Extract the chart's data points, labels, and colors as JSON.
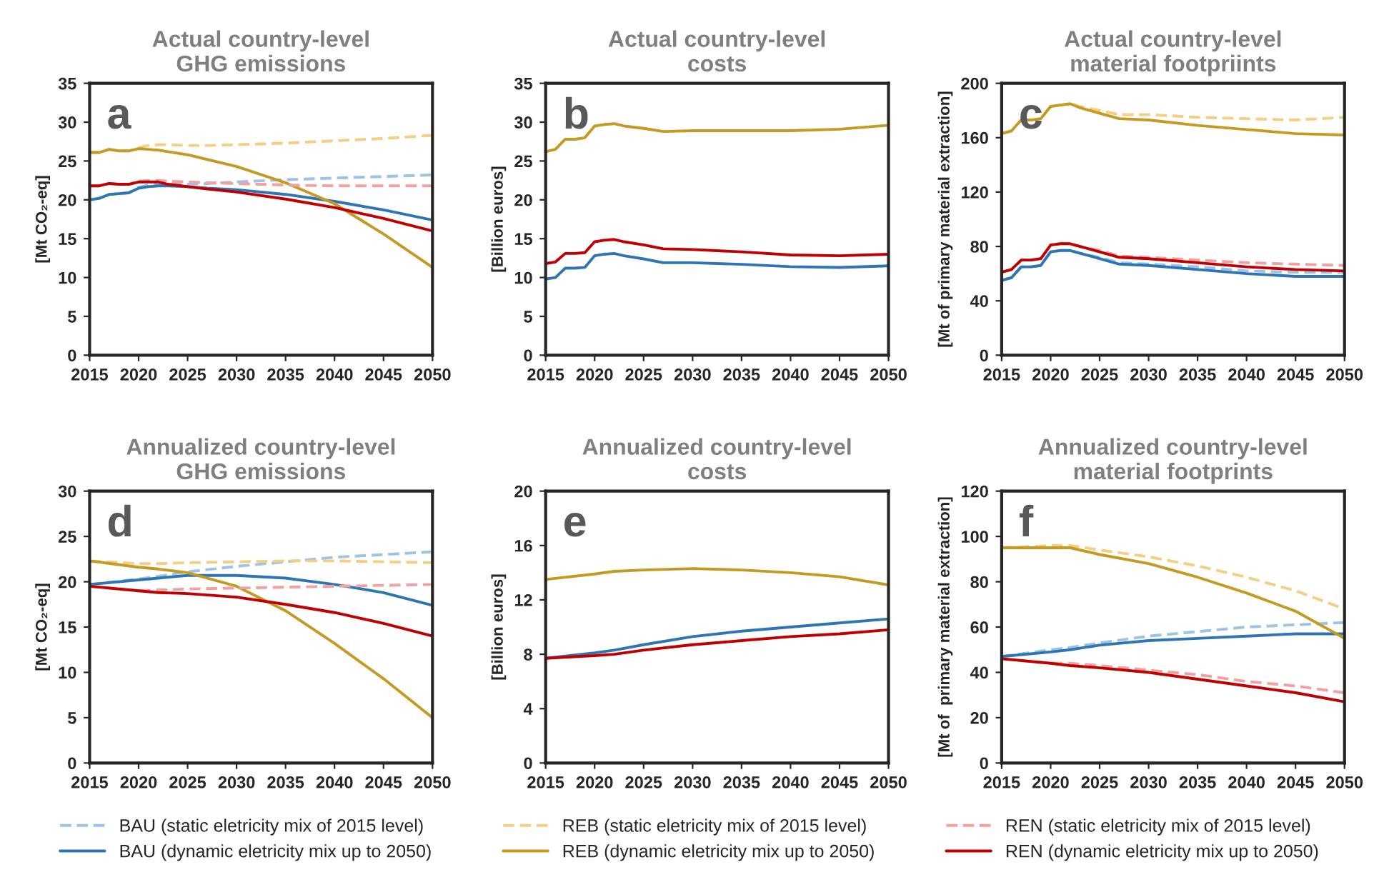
{
  "chart_data": [
    {
      "type": "line",
      "title": "Actual country-level\nGHG emissions",
      "ylabel": "[Mt CO₂-eq]",
      "annotations": [
        "a"
      ],
      "legend": "bottom",
      "xlim": [
        2015,
        2050
      ],
      "xticks": [
        2015,
        2020,
        2025,
        2030,
        2035,
        2040,
        2045,
        2050
      ],
      "ylim": [
        0,
        35
      ],
      "yticks": [
        0,
        5,
        10,
        15,
        20,
        25,
        30,
        35
      ],
      "x": [
        2015,
        2016,
        2017,
        2018,
        2019,
        2020,
        2021,
        2022,
        2023,
        2025,
        2027,
        2030,
        2035,
        2040,
        2045,
        2050
      ],
      "series": [
        {
          "name": "BAU (static eletricity mix of 2015 level)",
          "color": "#9dc3e6",
          "line_style": "dashed",
          "values": [
            20.0,
            20.2,
            20.7,
            20.8,
            20.9,
            21.6,
            21.9,
            22.0,
            22.0,
            22.0,
            22.1,
            22.3,
            22.6,
            22.8,
            23.0,
            23.2
          ]
        },
        {
          "name": "BAU (dynamic eletricity mix up to 2050)",
          "color": "#2e75b6",
          "line_style": "solid",
          "values": [
            20.0,
            20.2,
            20.7,
            20.8,
            20.9,
            21.5,
            21.7,
            21.8,
            21.8,
            21.7,
            21.5,
            21.3,
            20.7,
            19.8,
            18.7,
            17.4
          ]
        },
        {
          "name": "REB (static eletricity mix of 2015 level)",
          "color": "#f2cf85",
          "line_style": "dashed",
          "values": [
            26.1,
            26.1,
            26.5,
            26.3,
            26.3,
            26.7,
            27.0,
            27.1,
            27.1,
            27.0,
            27.0,
            27.1,
            27.3,
            27.6,
            27.9,
            28.3
          ]
        },
        {
          "name": "REB (dynamic eletricity mix up to 2050)",
          "color": "#c49a22",
          "line_style": "solid",
          "values": [
            26.1,
            26.1,
            26.5,
            26.3,
            26.3,
            26.6,
            26.5,
            26.4,
            26.2,
            25.8,
            25.2,
            24.3,
            22.2,
            19.5,
            15.6,
            11.3
          ]
        },
        {
          "name": "REN (static eletricity mix of 2015 level)",
          "color": "#f2a0a0",
          "line_style": "dashed",
          "values": [
            21.8,
            21.8,
            22.1,
            22.0,
            22.0,
            22.4,
            22.5,
            22.5,
            22.4,
            22.3,
            22.2,
            22.1,
            21.9,
            21.8,
            21.8,
            21.8
          ]
        },
        {
          "name": "REN (dynamic eletricity mix up to 2050)",
          "color": "#c00000",
          "line_style": "solid",
          "values": [
            21.8,
            21.8,
            22.1,
            22.0,
            22.0,
            22.3,
            22.3,
            22.3,
            22.0,
            21.7,
            21.4,
            21.0,
            20.1,
            19.0,
            17.6,
            16.0
          ]
        }
      ]
    },
    {
      "type": "line",
      "title": "Actual country-level\ncosts",
      "ylabel": "[Billion euros]",
      "annotations": [
        "b"
      ],
      "xlim": [
        2015,
        2050
      ],
      "xticks": [
        2015,
        2020,
        2025,
        2030,
        2035,
        2040,
        2045,
        2050
      ],
      "ylim": [
        0,
        35
      ],
      "yticks": [
        0,
        5,
        10,
        15,
        20,
        25,
        30,
        35
      ],
      "x": [
        2015,
        2016,
        2017,
        2018,
        2019,
        2020,
        2021,
        2022,
        2023,
        2025,
        2027,
        2030,
        2035,
        2040,
        2045,
        2050
      ],
      "series": [
        {
          "color": "#2e75b6",
          "line_style": "solid",
          "values": [
            9.8,
            10.0,
            11.2,
            11.2,
            11.3,
            12.8,
            13.0,
            13.1,
            12.8,
            12.4,
            11.9,
            11.9,
            11.7,
            11.4,
            11.3,
            11.5
          ]
        },
        {
          "color": "#c49a22",
          "line_style": "solid",
          "values": [
            26.2,
            26.5,
            27.8,
            27.8,
            28.0,
            29.5,
            29.7,
            29.8,
            29.5,
            29.2,
            28.8,
            28.9,
            28.9,
            28.9,
            29.1,
            29.6
          ]
        },
        {
          "color": "#c00000",
          "line_style": "solid",
          "values": [
            11.8,
            12.0,
            13.1,
            13.1,
            13.2,
            14.6,
            14.8,
            14.9,
            14.6,
            14.2,
            13.7,
            13.6,
            13.3,
            12.9,
            12.8,
            13.0
          ]
        }
      ]
    },
    {
      "type": "line",
      "title": "Actual country-level\nmaterial footpriints",
      "ylabel": "[Mt of primary material extraction]",
      "annotations": [
        "c"
      ],
      "xlim": [
        2015,
        2050
      ],
      "xticks": [
        2015,
        2020,
        2025,
        2030,
        2035,
        2040,
        2045,
        2050
      ],
      "ylim": [
        0,
        200
      ],
      "yticks": [
        0,
        40,
        80,
        120,
        160,
        200
      ],
      "x": [
        2015,
        2016,
        2017,
        2018,
        2019,
        2020,
        2021,
        2022,
        2023,
        2025,
        2027,
        2030,
        2035,
        2040,
        2045,
        2050
      ],
      "series": [
        {
          "color": "#9dc3e6",
          "line_style": "dashed",
          "values": [
            55,
            57,
            65,
            65,
            66,
            76,
            77,
            77,
            75,
            72,
            68,
            67,
            65,
            62,
            61,
            61
          ]
        },
        {
          "color": "#2e75b6",
          "line_style": "solid",
          "values": [
            55,
            57,
            65,
            65,
            66,
            76,
            77,
            77,
            75,
            71,
            67,
            66,
            63,
            60,
            58,
            58
          ]
        },
        {
          "color": "#f2cf85",
          "line_style": "dashed",
          "values": [
            163,
            165,
            173,
            173,
            174,
            183,
            184,
            185,
            183,
            180,
            177,
            177,
            175,
            174,
            173,
            175
          ]
        },
        {
          "color": "#c49a22",
          "line_style": "solid",
          "values": [
            163,
            165,
            173,
            173,
            174,
            183,
            184,
            185,
            182,
            178,
            174,
            173,
            169,
            166,
            163,
            162
          ]
        },
        {
          "color": "#f2a0a0",
          "line_style": "dashed",
          "values": [
            61,
            63,
            70,
            70,
            71,
            81,
            82,
            82,
            80,
            77,
            73,
            72,
            70,
            68,
            67,
            66
          ]
        },
        {
          "color": "#c00000",
          "line_style": "solid",
          "values": [
            61,
            63,
            70,
            70,
            71,
            81,
            82,
            82,
            80,
            76,
            72,
            71,
            68,
            65,
            63,
            62
          ]
        }
      ]
    },
    {
      "type": "line",
      "title": "Annualized country-level\nGHG emissions",
      "ylabel": "[Mt CO₂-eq]",
      "annotations": [
        "d"
      ],
      "xlim": [
        2015,
        2050
      ],
      "xticks": [
        2015,
        2020,
        2025,
        2030,
        2035,
        2040,
        2045,
        2050
      ],
      "ylim": [
        0,
        30
      ],
      "yticks": [
        0,
        5,
        10,
        15,
        20,
        25,
        30
      ],
      "x": [
        2015,
        2020,
        2022,
        2025,
        2030,
        2035,
        2040,
        2045,
        2050
      ],
      "series": [
        {
          "color": "#9dc3e6",
          "line_style": "dashed",
          "values": [
            19.7,
            20.3,
            20.6,
            21.1,
            21.7,
            22.2,
            22.7,
            23.0,
            23.3
          ]
        },
        {
          "color": "#2e75b6",
          "line_style": "solid",
          "values": [
            19.7,
            20.2,
            20.4,
            20.7,
            20.7,
            20.4,
            19.7,
            18.8,
            17.4
          ]
        },
        {
          "color": "#f2cf85",
          "line_style": "dashed",
          "values": [
            22.3,
            22.0,
            22.0,
            22.1,
            22.2,
            22.3,
            22.3,
            22.2,
            22.1
          ]
        },
        {
          "color": "#c49a22",
          "line_style": "solid",
          "values": [
            22.3,
            21.6,
            21.4,
            21.0,
            19.5,
            16.8,
            13.2,
            9.3,
            5.0
          ]
        },
        {
          "color": "#f2a0a0",
          "line_style": "dashed",
          "values": [
            19.5,
            19.0,
            19.1,
            19.2,
            19.3,
            19.4,
            19.5,
            19.6,
            19.7
          ]
        },
        {
          "color": "#c00000",
          "line_style": "solid",
          "values": [
            19.5,
            19.0,
            18.8,
            18.7,
            18.3,
            17.5,
            16.6,
            15.4,
            14.0
          ]
        }
      ]
    },
    {
      "type": "line",
      "title": "Annualized country-level\ncosts",
      "ylabel": "[Billion euros]",
      "annotations": [
        "e"
      ],
      "xlim": [
        2015,
        2050
      ],
      "xticks": [
        2015,
        2020,
        2025,
        2030,
        2035,
        2040,
        2045,
        2050
      ],
      "ylim": [
        0,
        20
      ],
      "yticks": [
        0,
        4,
        8,
        12,
        16,
        20
      ],
      "x": [
        2015,
        2020,
        2022,
        2025,
        2030,
        2035,
        2040,
        2045,
        2050
      ],
      "series": [
        {
          "color": "#2e75b6",
          "line_style": "solid",
          "values": [
            7.7,
            8.1,
            8.3,
            8.7,
            9.3,
            9.7,
            10.0,
            10.3,
            10.6
          ]
        },
        {
          "color": "#c49a22",
          "line_style": "solid",
          "values": [
            13.5,
            13.9,
            14.1,
            14.2,
            14.3,
            14.2,
            14.0,
            13.7,
            13.1
          ]
        },
        {
          "color": "#c00000",
          "line_style": "solid",
          "values": [
            7.7,
            7.9,
            8.0,
            8.3,
            8.7,
            9.0,
            9.3,
            9.5,
            9.8
          ]
        }
      ]
    },
    {
      "type": "line",
      "title": "Annualized country-level\nmaterial footprints",
      "ylabel": "[Mt of  primary material extraction]",
      "annotations": [
        "f"
      ],
      "xlim": [
        2015,
        2050
      ],
      "xticks": [
        2015,
        2020,
        2025,
        2030,
        2035,
        2040,
        2045,
        2050
      ],
      "ylim": [
        0,
        120
      ],
      "yticks": [
        0,
        20,
        40,
        60,
        80,
        100,
        120
      ],
      "x": [
        2015,
        2020,
        2022,
        2025,
        2030,
        2035,
        2040,
        2045,
        2050
      ],
      "series": [
        {
          "color": "#9dc3e6",
          "line_style": "dashed",
          "values": [
            47,
            50,
            51,
            53,
            56,
            58,
            60,
            61,
            62
          ]
        },
        {
          "color": "#2e75b6",
          "line_style": "solid",
          "values": [
            47,
            49,
            50,
            52,
            54,
            55,
            56,
            57,
            57
          ]
        },
        {
          "color": "#f2cf85",
          "line_style": "dashed",
          "values": [
            95,
            96,
            96,
            94,
            91,
            87,
            82,
            76,
            68
          ]
        },
        {
          "color": "#c49a22",
          "line_style": "solid",
          "values": [
            95,
            95,
            95,
            92,
            88,
            82,
            75,
            67,
            55
          ]
        },
        {
          "color": "#f2a0a0",
          "line_style": "dashed",
          "values": [
            46,
            44,
            44,
            43,
            41,
            39,
            36,
            34,
            31
          ]
        },
        {
          "color": "#c00000",
          "line_style": "solid",
          "values": [
            46,
            44,
            43,
            42,
            40,
            37,
            34,
            31,
            27
          ]
        }
      ]
    }
  ]
}
